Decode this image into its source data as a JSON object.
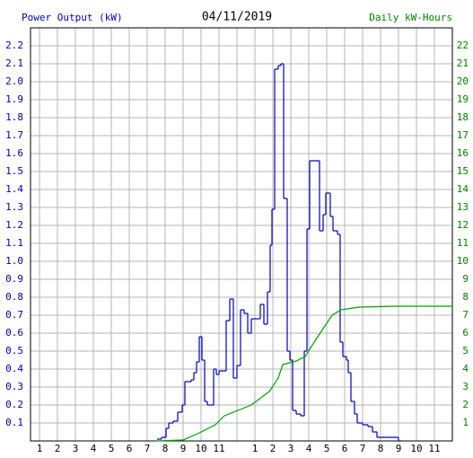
{
  "chart_data": {
    "type": "line",
    "title": "04/11/2019",
    "ylabel": "Power Output (kW)",
    "y2label": "Daily kW-Hours",
    "grid": true,
    "xlim": [
      0.5,
      24
    ],
    "ylim": [
      0,
      2.3
    ],
    "y2lim": [
      0,
      23
    ],
    "xticks": [
      {
        "value": 1,
        "label": "1"
      },
      {
        "value": 2,
        "label": "2"
      },
      {
        "value": 3,
        "label": "3"
      },
      {
        "value": 4,
        "label": "4"
      },
      {
        "value": 5,
        "label": "5"
      },
      {
        "value": 6,
        "label": "6"
      },
      {
        "value": 7,
        "label": "7"
      },
      {
        "value": 8,
        "label": "8"
      },
      {
        "value": 9,
        "label": "9"
      },
      {
        "value": 10,
        "label": "10"
      },
      {
        "value": 11,
        "label": "11"
      },
      {
        "value": 12,
        "label": null
      },
      {
        "value": 13,
        "label": "1"
      },
      {
        "value": 14,
        "label": "2"
      },
      {
        "value": 15,
        "label": "3"
      },
      {
        "value": 16,
        "label": "4"
      },
      {
        "value": 17,
        "label": "5"
      },
      {
        "value": 18,
        "label": "6"
      },
      {
        "value": 19,
        "label": "7"
      },
      {
        "value": 20,
        "label": "8"
      },
      {
        "value": 21,
        "label": "9"
      },
      {
        "value": 22,
        "label": "10"
      },
      {
        "value": 23,
        "label": "11"
      }
    ],
    "yticks": [
      0.1,
      0.2,
      0.3,
      0.4,
      0.5,
      0.6,
      0.7,
      0.8,
      0.9,
      {
        "value": 1.0,
        "label": "1.0"
      },
      1.1,
      1.2,
      1.3,
      1.4,
      1.5,
      1.6,
      1.7,
      1.8,
      1.9,
      {
        "value": 2.0,
        "label": "2.0"
      },
      2.1,
      2.2
    ],
    "y2ticks": [
      1,
      2,
      3,
      4,
      5,
      6,
      7,
      8,
      9,
      10,
      11,
      12,
      13,
      14,
      15,
      16,
      17,
      18,
      19,
      20,
      21,
      22
    ],
    "series": [
      {
        "name": "Power Output (kW)",
        "color": "#0000b4",
        "step": true,
        "x": [
          7.55,
          7.8,
          8.05,
          8.2,
          8.45,
          8.7,
          8.95,
          9.1,
          9.45,
          9.6,
          9.75,
          9.9,
          10.05,
          10.2,
          10.35,
          10.55,
          10.7,
          10.85,
          11.0,
          11.3,
          11.4,
          11.6,
          11.8,
          12.0,
          12.2,
          12.4,
          12.6,
          12.8,
          13.0,
          13.3,
          13.5,
          13.7,
          13.85,
          13.95,
          14.1,
          14.3,
          14.45,
          14.6,
          14.8,
          14.95,
          15.1,
          15.3,
          15.55,
          15.75,
          15.9,
          16.05,
          16.4,
          16.6,
          16.8,
          16.95,
          17.2,
          17.35,
          17.6,
          17.75,
          17.9,
          18.1,
          18.2,
          18.35,
          18.55,
          18.7,
          19.0,
          19.3,
          19.55,
          19.8,
          20.8,
          21.0
        ],
        "values": [
          0.01,
          0.02,
          0.07,
          0.1,
          0.11,
          0.16,
          0.2,
          0.33,
          0.34,
          0.38,
          0.44,
          0.58,
          0.45,
          0.22,
          0.2,
          0.2,
          0.4,
          0.37,
          0.39,
          0.39,
          0.67,
          0.79,
          0.35,
          0.42,
          0.73,
          0.71,
          0.6,
          0.68,
          0.68,
          0.76,
          0.65,
          0.83,
          1.09,
          1.29,
          2.07,
          2.09,
          2.1,
          1.35,
          0.5,
          0.45,
          0.17,
          0.15,
          0.14,
          0.5,
          1.18,
          1.56,
          1.56,
          1.17,
          1.26,
          1.38,
          1.25,
          1.17,
          1.15,
          0.55,
          0.47,
          0.45,
          0.38,
          0.22,
          0.15,
          0.1,
          0.09,
          0.08,
          0.05,
          0.02,
          0.02,
          0
        ]
      },
      {
        "name": "Daily kW-Hours",
        "color": "#00a000",
        "axis": "y2",
        "x": [
          7.5,
          9.0,
          9.8,
          10.8,
          11.3,
          12.8,
          13.8,
          14.3,
          14.55,
          15.3,
          15.8,
          16.3,
          16.8,
          17.3,
          17.8,
          18.8,
          20.8,
          24.0
        ],
        "values": [
          0,
          0.05,
          0.4,
          0.9,
          1.4,
          2.0,
          2.75,
          3.5,
          4.25,
          4.45,
          4.7,
          5.5,
          6.25,
          7.0,
          7.3,
          7.45,
          7.5,
          7.5
        ]
      }
    ]
  }
}
